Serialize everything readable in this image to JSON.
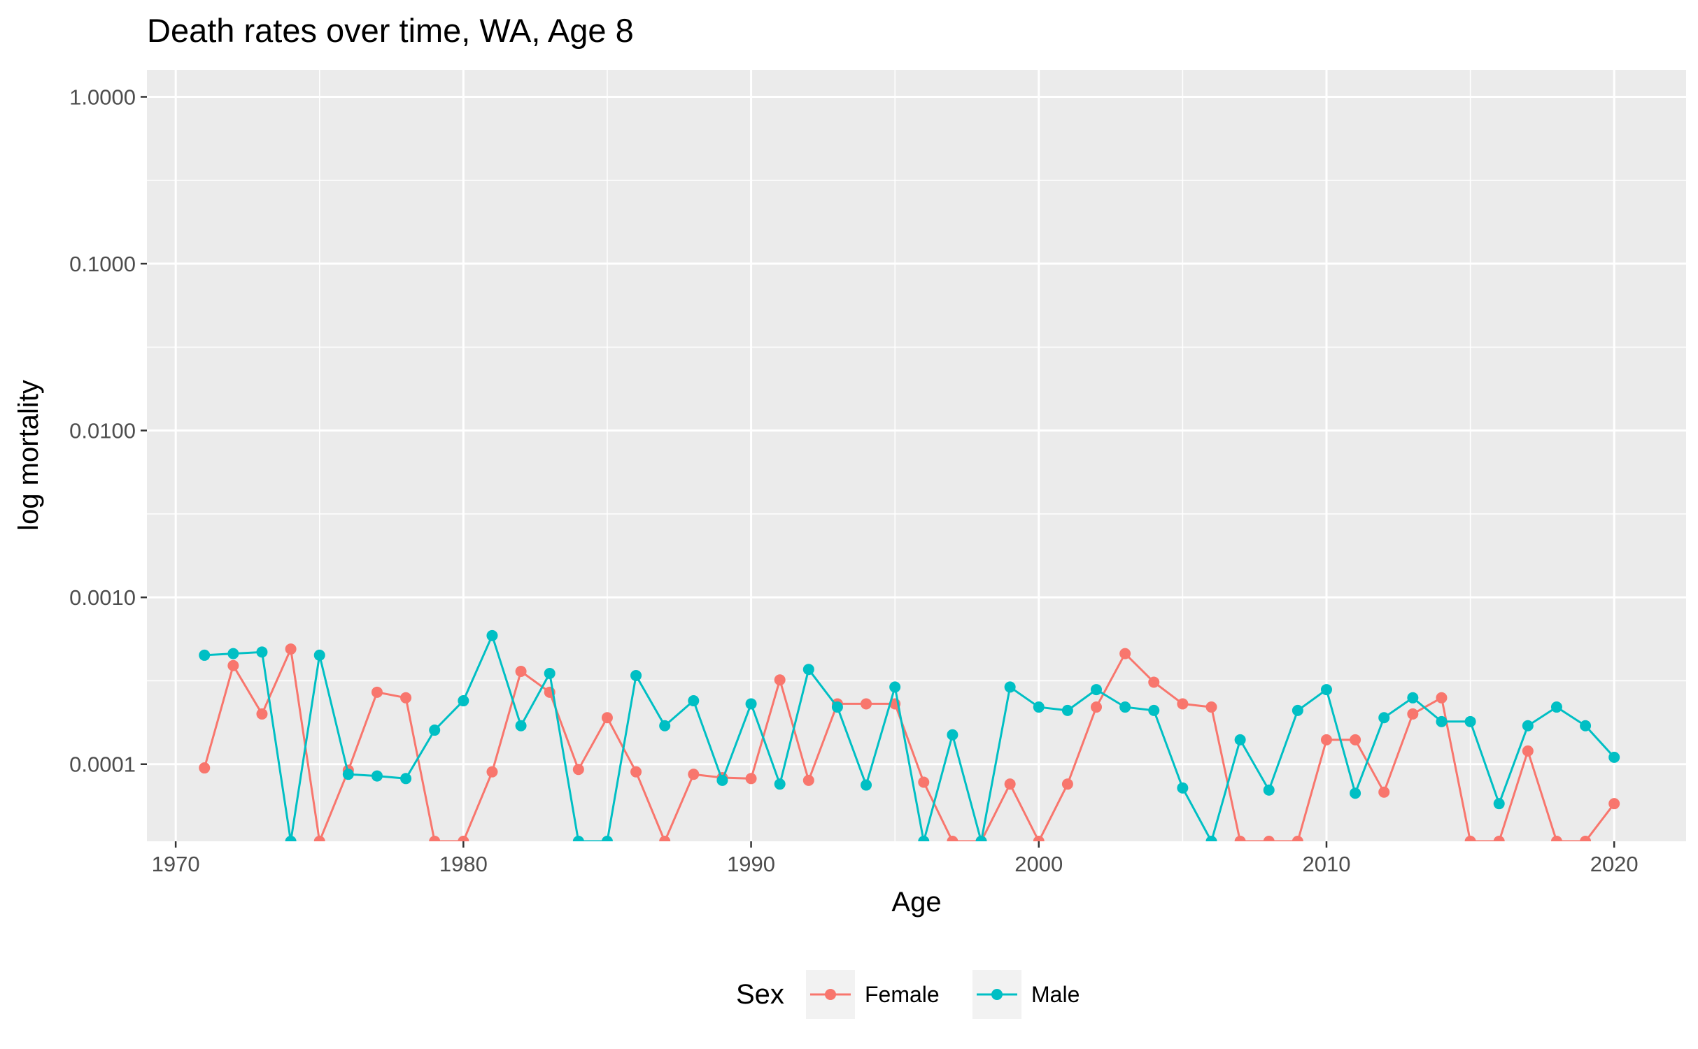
{
  "chart_data": {
    "type": "line",
    "title": "Death rates over time, WA, Age 8",
    "xlabel": "Age",
    "ylabel": "log mortality",
    "y_scale": "log10",
    "xlim": [
      1969,
      2022.5
    ],
    "ylim": [
      3.45e-05,
      1.45
    ],
    "x_ticks": [
      1970,
      1980,
      1990,
      2000,
      2010,
      2020
    ],
    "y_ticks": [
      1,
      0.1,
      0.01,
      0.001,
      0.0001
    ],
    "y_tick_labels": [
      "1.0000",
      "0.1000",
      "0.0100",
      "0.0010",
      "0.0001"
    ],
    "grid": true,
    "legend": {
      "title": "Sex",
      "position": "bottom"
    },
    "x": [
      1971,
      1972,
      1973,
      1974,
      1975,
      1976,
      1977,
      1978,
      1979,
      1980,
      1981,
      1982,
      1983,
      1984,
      1985,
      1986,
      1987,
      1988,
      1989,
      1990,
      1991,
      1992,
      1993,
      1994,
      1995,
      1996,
      1997,
      1998,
      1999,
      2000,
      2001,
      2002,
      2003,
      2004,
      2005,
      2006,
      2007,
      2008,
      2009,
      2010,
      2011,
      2012,
      2013,
      2014,
      2015,
      2016,
      2017,
      2018,
      2019,
      2020
    ],
    "series": [
      {
        "name": "Female",
        "color": "#F8766D",
        "values": [
          9.5e-05,
          0.00039,
          0.0002,
          0.00049,
          3.45e-05,
          9.2e-05,
          0.00027,
          0.00025,
          3.45e-05,
          3.45e-05,
          9e-05,
          0.00036,
          0.00027,
          9.3e-05,
          0.00019,
          9e-05,
          3.45e-05,
          8.7e-05,
          8.3e-05,
          8.2e-05,
          0.00032,
          8e-05,
          0.00023,
          0.00023,
          0.00023,
          7.8e-05,
          3.45e-05,
          3.45e-05,
          7.6e-05,
          3.45e-05,
          7.6e-05,
          0.00022,
          0.00046,
          0.00031,
          0.00023,
          0.00022,
          3.45e-05,
          3.45e-05,
          3.45e-05,
          0.00014,
          0.00014,
          6.8e-05,
          0.0002,
          0.00025,
          3.45e-05,
          3.45e-05,
          0.00012,
          3.45e-05,
          3.45e-05,
          5.8e-05
        ]
      },
      {
        "name": "Male",
        "color": "#00BFC4",
        "values": [
          0.00045,
          0.00046,
          0.00047,
          3.45e-05,
          0.00045,
          8.7e-05,
          8.5e-05,
          8.2e-05,
          0.00016,
          0.00024,
          0.00059,
          0.00017,
          0.00035,
          3.45e-05,
          3.45e-05,
          0.00034,
          0.00017,
          0.00024,
          8e-05,
          0.00023,
          7.6e-05,
          0.00037,
          0.00022,
          7.5e-05,
          0.00029,
          3.45e-05,
          0.00015,
          3.45e-05,
          0.00029,
          0.00022,
          0.00021,
          0.00028,
          0.00022,
          0.00021,
          7.2e-05,
          3.45e-05,
          0.00014,
          7e-05,
          0.00021,
          0.00028,
          6.7e-05,
          0.00019,
          0.00025,
          0.00018,
          0.00018,
          5.8e-05,
          0.00017,
          0.00022,
          0.00017,
          0.00011
        ]
      }
    ]
  }
}
